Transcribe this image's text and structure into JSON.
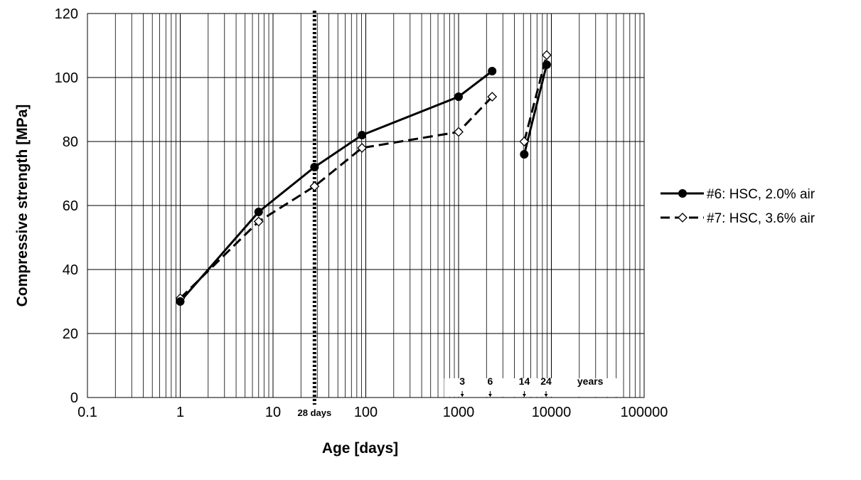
{
  "chart_data": {
    "type": "line",
    "xscale": "log",
    "xlim": [
      0.1,
      100000
    ],
    "ylim": [
      0,
      120
    ],
    "xticks": [
      "0.1",
      "1",
      "10",
      "100",
      "1000",
      "10000",
      "100000"
    ],
    "yticks": [
      "0",
      "20",
      "40",
      "60",
      "80",
      "100",
      "120"
    ],
    "xlabel": "Age [days]",
    "ylabel": "Compressive strength [MPa]",
    "grid": true,
    "legend_position": "right",
    "reference_line": {
      "x": 28,
      "label": "28 days"
    },
    "year_markers": [
      {
        "x": 1095,
        "label": "3"
      },
      {
        "x": 2190,
        "label": "6"
      },
      {
        "x": 5110,
        "label": "14"
      },
      {
        "x": 8760,
        "label": "24"
      }
    ],
    "year_unit_label": "years",
    "series": [
      {
        "name": "#6: HSC, 2.0% air",
        "style": "solid",
        "marker": "filled-circle",
        "segments": [
          [
            [
              1,
              30
            ],
            [
              7,
              58
            ],
            [
              28,
              72
            ],
            [
              91,
              82
            ],
            [
              1000,
              94
            ],
            [
              2300,
              102
            ]
          ],
          [
            [
              5100,
              76
            ],
            [
              8900,
              104
            ]
          ]
        ]
      },
      {
        "name": "#7: HSC, 3.6% air",
        "style": "dashed",
        "marker": "open-diamond",
        "segments": [
          [
            [
              1,
              31
            ],
            [
              7,
              55
            ],
            [
              28,
              66
            ],
            [
              91,
              78
            ],
            [
              1000,
              83
            ],
            [
              2300,
              94
            ]
          ],
          [
            [
              5100,
              80
            ],
            [
              8900,
              107
            ]
          ]
        ]
      }
    ]
  }
}
